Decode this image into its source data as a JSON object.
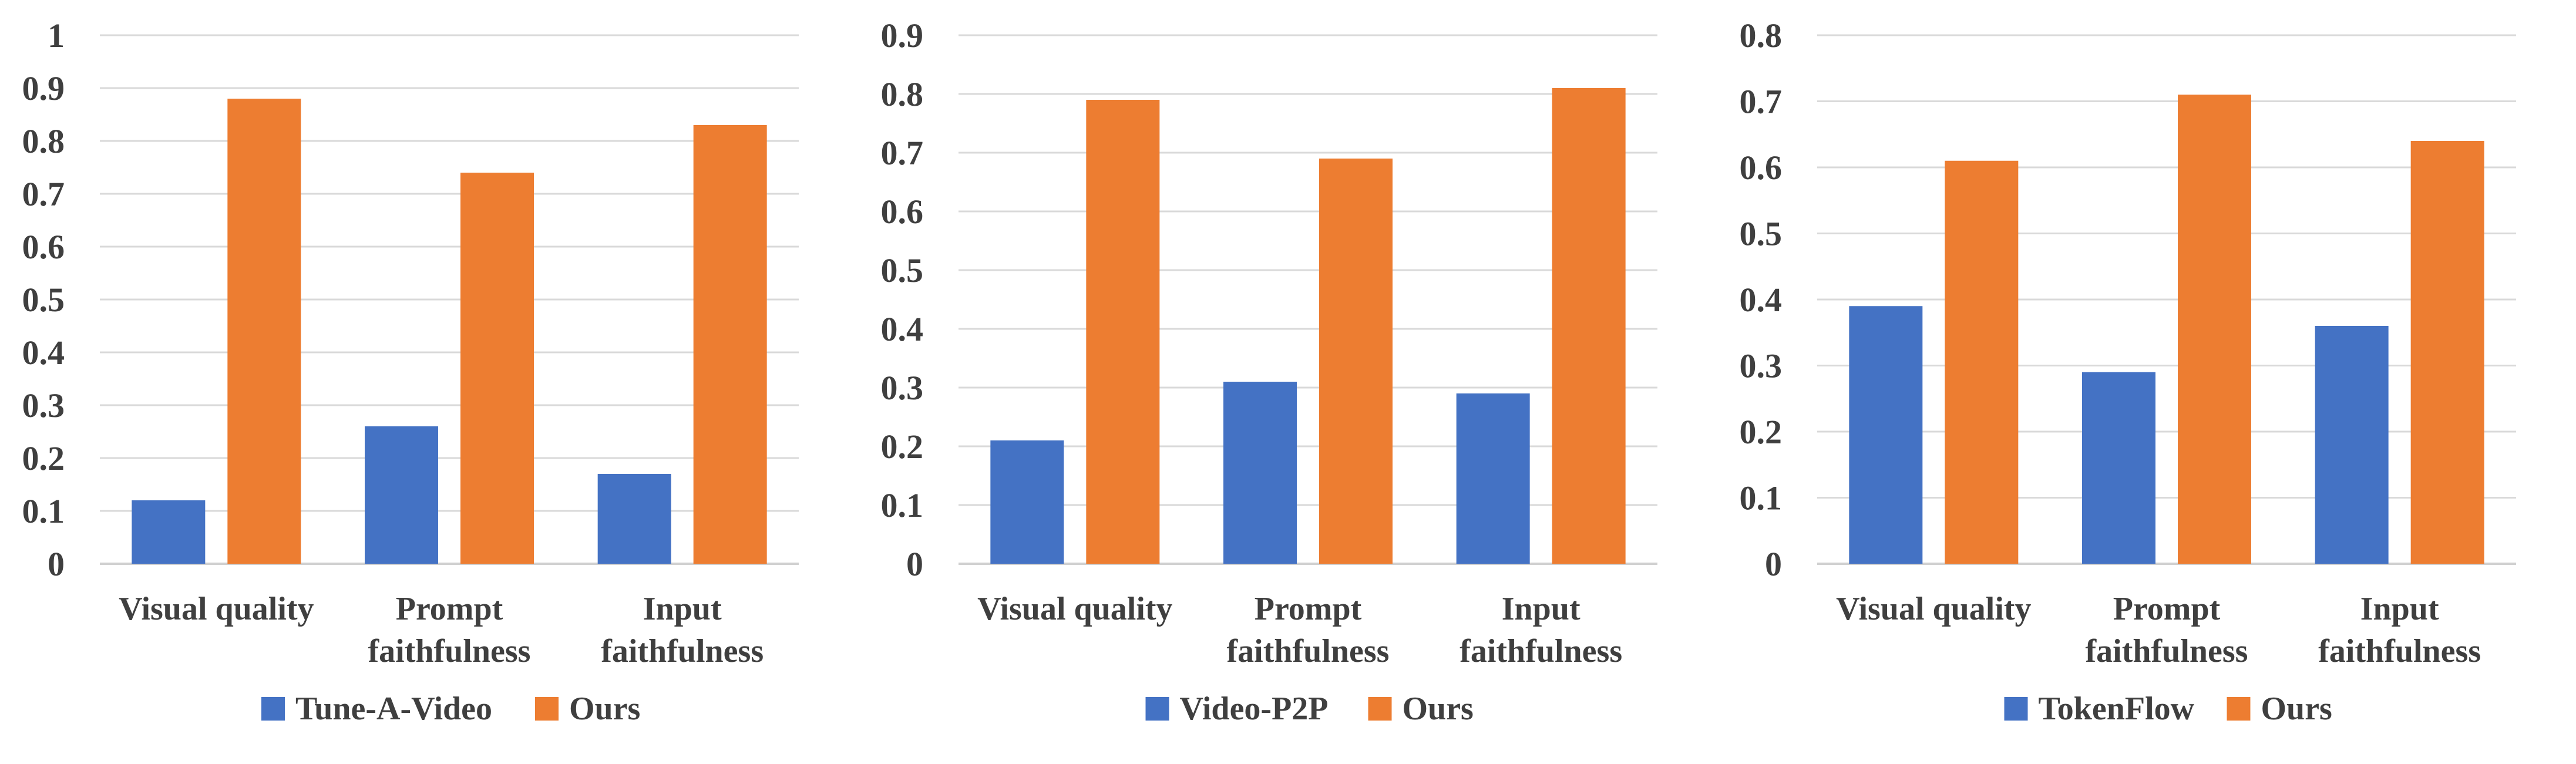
{
  "chart_data": [
    {
      "type": "bar",
      "categories": [
        [
          "Visual quality"
        ],
        [
          "Prompt",
          "faithfulness"
        ],
        [
          "Input",
          "faithfulness"
        ]
      ],
      "ylim": [
        0,
        1
      ],
      "yticks": [
        "0",
        "0.1",
        "0.2",
        "0.3",
        "0.4",
        "0.5",
        "0.6",
        "0.7",
        "0.8",
        "0.9",
        "1"
      ],
      "grid": true,
      "legend_position": "bottom",
      "series": [
        {
          "name": "Tune-A-Video",
          "color": "#4472c4",
          "values": [
            0.12,
            0.26,
            0.17
          ]
        },
        {
          "name": "Ours",
          "color": "#ed7d31",
          "values": [
            0.88,
            0.74,
            0.83
          ]
        }
      ]
    },
    {
      "type": "bar",
      "categories": [
        [
          "Visual quality"
        ],
        [
          "Prompt",
          "faithfulness"
        ],
        [
          "Input",
          "faithfulness"
        ]
      ],
      "ylim": [
        0,
        0.9
      ],
      "yticks": [
        "0",
        "0.1",
        "0.2",
        "0.3",
        "0.4",
        "0.5",
        "0.6",
        "0.7",
        "0.8",
        "0.9"
      ],
      "grid": true,
      "legend_position": "bottom",
      "series": [
        {
          "name": "Video-P2P",
          "color": "#4472c4",
          "values": [
            0.21,
            0.31,
            0.29
          ]
        },
        {
          "name": "Ours",
          "color": "#ed7d31",
          "values": [
            0.79,
            0.69,
            0.81
          ]
        }
      ]
    },
    {
      "type": "bar",
      "categories": [
        [
          "Visual quality"
        ],
        [
          "Prompt",
          "faithfulness"
        ],
        [
          "Input",
          "faithfulness"
        ]
      ],
      "ylim": [
        0,
        0.8
      ],
      "yticks": [
        "0",
        "0.1",
        "0.2",
        "0.3",
        "0.4",
        "0.5",
        "0.6",
        "0.7",
        "0.8"
      ],
      "grid": true,
      "legend_position": "bottom",
      "series": [
        {
          "name": "TokenFlow",
          "color": "#4472c4",
          "values": [
            0.39,
            0.29,
            0.36
          ]
        },
        {
          "name": "Ours",
          "color": "#ed7d31",
          "values": [
            0.61,
            0.71,
            0.64
          ]
        }
      ]
    }
  ]
}
